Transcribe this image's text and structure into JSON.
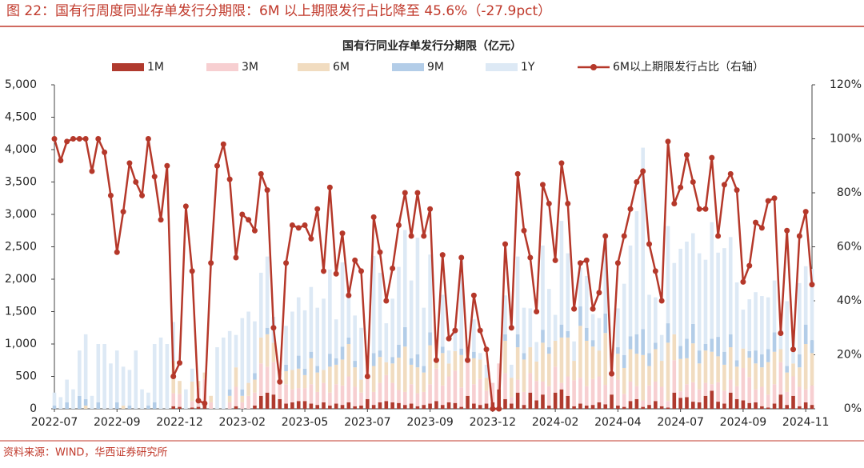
{
  "header": {
    "title": "图 22：国有行周度同业存单发行分期限：6M 以上期限发行占比降至 45.6%（-27.9pct）",
    "source": "资料来源：WIND，华西证券研究所"
  },
  "chart_data": {
    "type": "bar",
    "title": "国有行同业存单发行分期限（亿元）",
    "categories": [
      "2022-07",
      null,
      null,
      null,
      null,
      null,
      null,
      null,
      null,
      null,
      "2022-09",
      null,
      null,
      null,
      null,
      null,
      null,
      null,
      null,
      null,
      "2022-12",
      null,
      null,
      null,
      null,
      null,
      null,
      null,
      null,
      null,
      "2023-02",
      null,
      null,
      null,
      null,
      null,
      null,
      null,
      null,
      null,
      "2023-05",
      null,
      null,
      null,
      null,
      null,
      null,
      null,
      null,
      null,
      "2023-07",
      null,
      null,
      null,
      null,
      null,
      null,
      null,
      null,
      null,
      "2023-09",
      null,
      null,
      null,
      null,
      null,
      null,
      null,
      null,
      null,
      "2023-12",
      null,
      null,
      null,
      null,
      null,
      null,
      null,
      null,
      null,
      "2024-02",
      null,
      null,
      null,
      null,
      null,
      null,
      null,
      null,
      null,
      "2024-04",
      null,
      null,
      null,
      null,
      null,
      null,
      null,
      null,
      null,
      "2024-07",
      null,
      null,
      null,
      null,
      null,
      null,
      null,
      null,
      null,
      "2024-09",
      null,
      null,
      null,
      null,
      null,
      null,
      null,
      null,
      null,
      "2024-11",
      null
    ],
    "series": [
      {
        "name": "1M",
        "color": "#b03a2e",
        "values": [
          0,
          0,
          0,
          0,
          0,
          0,
          0,
          0,
          0,
          0,
          0,
          0,
          0,
          0,
          0,
          0,
          0,
          0,
          0,
          40,
          30,
          0,
          20,
          30,
          60,
          0,
          0,
          0,
          0,
          40,
          0,
          0,
          50,
          200,
          250,
          220,
          150,
          80,
          100,
          120,
          120,
          80,
          60,
          100,
          50,
          80,
          60,
          100,
          40,
          50,
          150,
          60,
          100,
          120,
          100,
          90,
          60,
          80,
          40,
          60,
          80,
          120,
          60,
          100,
          90,
          30,
          200,
          80,
          60,
          80,
          100,
          300,
          150,
          80,
          250,
          60,
          250,
          130,
          220,
          50,
          250,
          300,
          200,
          40,
          80,
          50,
          60,
          100,
          70,
          220,
          50,
          30,
          120,
          150,
          30,
          60,
          120,
          40,
          20,
          250,
          170,
          180,
          110,
          100,
          200,
          280,
          110,
          80,
          250,
          150,
          130,
          90,
          100,
          40,
          20,
          80,
          220,
          60,
          200,
          40,
          100,
          60
        ]
      },
      {
        "name": "3M",
        "color": "#f7cfd1",
        "values": [
          0,
          0,
          0,
          0,
          0,
          0,
          0,
          0,
          0,
          0,
          0,
          0,
          0,
          0,
          0,
          0,
          0,
          0,
          0,
          200,
          200,
          0,
          100,
          300,
          400,
          100,
          0,
          0,
          100,
          300,
          100,
          200,
          200,
          500,
          400,
          500,
          400,
          300,
          200,
          200,
          200,
          300,
          200,
          300,
          200,
          300,
          300,
          400,
          300,
          200,
          500,
          200,
          300,
          400,
          300,
          200,
          200,
          300,
          200,
          200,
          300,
          500,
          300,
          400,
          500,
          300,
          600,
          300,
          400,
          200,
          300,
          400,
          400,
          100,
          200,
          200,
          300,
          300,
          200,
          300,
          400,
          100,
          300,
          400,
          400,
          300,
          400,
          400,
          300,
          600,
          400,
          200,
          300,
          200,
          100,
          300,
          300,
          300,
          100,
          500,
          100,
          200,
          300,
          200,
          200,
          100,
          300,
          200,
          200,
          200,
          500,
          400,
          200,
          300,
          200,
          300,
          500,
          200,
          300,
          300,
          200,
          300
        ]
      },
      {
        "name": "6M",
        "color": "#f1dcc0",
        "values": [
          0,
          0,
          0,
          0,
          0,
          50,
          0,
          0,
          0,
          0,
          0,
          50,
          0,
          0,
          0,
          0,
          0,
          0,
          0,
          500,
          200,
          0,
          300,
          100,
          100,
          100,
          0,
          0,
          100,
          300,
          100,
          200,
          200,
          400,
          500,
          300,
          0,
          200,
          300,
          300,
          200,
          400,
          300,
          200,
          400,
          300,
          400,
          500,
          300,
          200,
          100,
          400,
          400,
          200,
          300,
          500,
          700,
          300,
          400,
          300,
          600,
          100,
          500,
          200,
          300,
          500,
          100,
          400,
          300,
          200,
          0,
          0,
          500,
          300,
          500,
          500,
          400,
          300,
          600,
          500,
          400,
          700,
          600,
          300,
          800,
          700,
          500,
          400,
          800,
          100,
          400,
          400,
          500,
          500,
          700,
          300,
          500,
          400,
          900,
          400,
          500,
          400,
          600,
          400,
          500,
          500,
          400,
          400,
          500,
          300,
          300,
          300,
          400,
          300,
          500,
          500,
          200,
          300,
          200,
          300,
          700,
          500
        ]
      },
      {
        "name": "9M",
        "color": "#b3cde8",
        "values": [
          50,
          0,
          100,
          0,
          200,
          100,
          0,
          100,
          0,
          0,
          100,
          0,
          50,
          0,
          0,
          50,
          100,
          0,
          0,
          0,
          0,
          0,
          0,
          0,
          0,
          0,
          0,
          0,
          100,
          0,
          100,
          0,
          100,
          0,
          100,
          0,
          0,
          100,
          0,
          200,
          100,
          100,
          100,
          0,
          200,
          100,
          200,
          100,
          100,
          0,
          0,
          200,
          100,
          0,
          100,
          200,
          300,
          100,
          200,
          100,
          200,
          0,
          100,
          0,
          0,
          100,
          0,
          100,
          0,
          0,
          0,
          0,
          100,
          0,
          200,
          100,
          0,
          0,
          200,
          100,
          0,
          200,
          100,
          0,
          300,
          200,
          100,
          0,
          300,
          0,
          100,
          200,
          200,
          300,
          400,
          200,
          100,
          0,
          300,
          0,
          200,
          300,
          300,
          200,
          100,
          200,
          300,
          200,
          200,
          100,
          0,
          100,
          200,
          200,
          200,
          300,
          0,
          100,
          0,
          200,
          300,
          200
        ]
      },
      {
        "name": "1Y",
        "color": "#dde9f5",
        "values": [
          200,
          180,
          350,
          300,
          700,
          1000,
          200,
          900,
          1000,
          700,
          800,
          600,
          550,
          900,
          300,
          200,
          900,
          1100,
          1000,
          600,
          0,
          300,
          200,
          0,
          0,
          0,
          950,
          1100,
          900,
          500,
          1100,
          1100,
          800,
          1000,
          1100,
          400,
          0,
          600,
          900,
          900,
          900,
          1000,
          900,
          1100,
          1300,
          600,
          1300,
          800,
          700,
          800,
          0,
          1500,
          1200,
          600,
          900,
          1200,
          1500,
          1200,
          1800,
          900,
          1200,
          0,
          800,
          200,
          300,
          1400,
          0,
          500,
          100,
          200,
          0,
          0,
          600,
          200,
          1200,
          700,
          600,
          300,
          1300,
          900,
          400,
          1600,
          1200,
          300,
          600,
          800,
          400,
          500,
          1200,
          0,
          600,
          1100,
          1400,
          1900,
          2800,
          900,
          700,
          400,
          1500,
          1100,
          1500,
          1500,
          1400,
          1500,
          1300,
          1800,
          1300,
          1600,
          1500,
          1200,
          600,
          800,
          900,
          900,
          800,
          800,
          300,
          1000,
          500,
          1100,
          900,
          1100
        ]
      },
      {
        "name": "6M以上期限发行占比（右轴）",
        "type": "line",
        "axis": "y2",
        "color": "#b5382a",
        "values": [
          100,
          92,
          99,
          100,
          100,
          100,
          88,
          100,
          95,
          79,
          58,
          73,
          91,
          84,
          79,
          100,
          86,
          70,
          90,
          12,
          17,
          75,
          51,
          3,
          2,
          54,
          90,
          98,
          85,
          56,
          72,
          70,
          66,
          87,
          81,
          30,
          10,
          54,
          68,
          67,
          68,
          63,
          74,
          51,
          82,
          50,
          65,
          42,
          55,
          51,
          12,
          71,
          58,
          40,
          52,
          68,
          80,
          64,
          80,
          64,
          74,
          18,
          57,
          26,
          29,
          56,
          18,
          42,
          29,
          22,
          0,
          0,
          61,
          30,
          87,
          66,
          56,
          36,
          83,
          76,
          55,
          91,
          76,
          37,
          54,
          55,
          37,
          43,
          64,
          13,
          54,
          64,
          74,
          84,
          88,
          61,
          51,
          40,
          99,
          76,
          82,
          94,
          84,
          74,
          74,
          93,
          64,
          83,
          87,
          81,
          47,
          53,
          69,
          67,
          77,
          78,
          28,
          66,
          22,
          64,
          73,
          46
        ]
      }
    ],
    "stacked": true,
    "ylim": [
      0,
      5000
    ],
    "yticks": [
      0,
      500,
      {
        "value": 1000,
        "label": "1,000"
      },
      {
        "value": 1500,
        "label": "1,500"
      },
      {
        "value": 2000,
        "label": "2,000"
      },
      {
        "value": 2500,
        "label": "2,500"
      },
      {
        "value": 3000,
        "label": "3,000"
      },
      {
        "value": 3500,
        "label": "3,500"
      },
      {
        "value": 4000,
        "label": "4,000"
      },
      {
        "value": 4500,
        "label": "4,500"
      },
      {
        "value": 5000,
        "label": "5,000"
      }
    ],
    "y2lim": [
      0,
      120
    ],
    "y2ticks": [
      {
        "value": 0,
        "label": "0%"
      },
      {
        "value": 20,
        "label": "20%"
      },
      {
        "value": 40,
        "label": "40%"
      },
      {
        "value": 60,
        "label": "60%"
      },
      {
        "value": 80,
        "label": "80%"
      },
      {
        "value": 100,
        "label": "100%"
      },
      {
        "value": 120,
        "label": "120%"
      }
    ],
    "legend": "top"
  }
}
